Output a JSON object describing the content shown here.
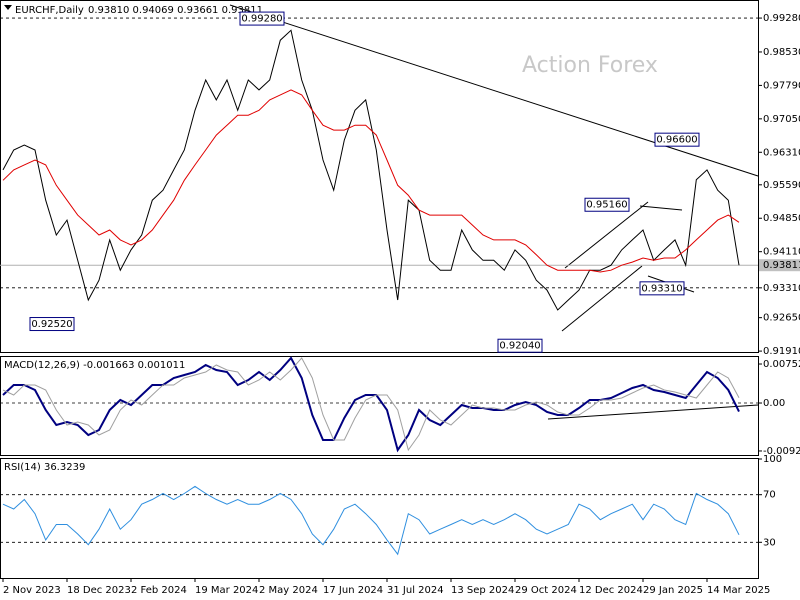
{
  "chart_data": [
    {
      "type": "line",
      "title": "EURCHF,Daily",
      "subtitle": "0.93810 0.94069 0.93661 0.93811",
      "watermark": "Action Forex",
      "categories": [
        "2 Nov 2023",
        null,
        null,
        null,
        null,
        null,
        "18 Dec 2023",
        null,
        null,
        null,
        null,
        null,
        "2 Feb 2024",
        null,
        null,
        null,
        null,
        null,
        "19 Mar 2024",
        null,
        null,
        null,
        null,
        null,
        "2 May 2024",
        null,
        null,
        null,
        null,
        null,
        "17 Jun 2024",
        null,
        null,
        null,
        null,
        null,
        "31 Jul 2024",
        null,
        null,
        null,
        null,
        null,
        "13 Sep 2024",
        null,
        null,
        null,
        null,
        null,
        "29 Oct 2024",
        null,
        null,
        null,
        null,
        null,
        "12 Dec 2024",
        null,
        null,
        null,
        null,
        null,
        "29 Jan 2025",
        null,
        null,
        null,
        null,
        null,
        "14 Mar 2025",
        null,
        null,
        null
      ],
      "series": [
        {
          "color": "#000000",
          "values": [
            0.9592,
            0.9636,
            0.9647,
            0.9636,
            0.9525,
            0.9448,
            0.9481,
            0.9392,
            0.9304,
            0.9348,
            0.9437,
            0.937,
            0.9415,
            0.9448,
            0.9525,
            0.9547,
            0.9592,
            0.9636,
            0.9724,
            0.9791,
            0.9747,
            0.9791,
            0.9724,
            0.9791,
            0.9769,
            0.9791,
            0.9879,
            0.9901,
            0.9791,
            0.9724,
            0.9614,
            0.9547,
            0.9658,
            0.9724,
            0.9747,
            0.9636,
            0.9459,
            0.9304,
            0.9525,
            0.9503,
            0.9392,
            0.937,
            0.937,
            0.9459,
            0.9415,
            0.9392,
            0.9392,
            0.937,
            0.9415,
            0.9392,
            0.9348,
            0.9326,
            0.9282,
            0.9304,
            0.9326,
            0.937,
            0.937,
            0.9381,
            0.9415,
            0.9437,
            0.9459,
            0.9392,
            0.9415,
            0.9437,
            0.9381,
            0.957,
            0.9592,
            0.9547,
            0.9525,
            0.93811
          ]
        },
        {
          "color": "#e00000",
          "values": [
            0.9569,
            0.9592,
            0.9603,
            0.9614,
            0.9603,
            0.9558,
            0.9525,
            0.9492,
            0.947,
            0.9448,
            0.9459,
            0.9437,
            0.9426,
            0.9437,
            0.9459,
            0.9492,
            0.9525,
            0.9569,
            0.9603,
            0.9636,
            0.9669,
            0.9691,
            0.9713,
            0.9713,
            0.9724,
            0.9747,
            0.9758,
            0.9769,
            0.9758,
            0.9724,
            0.9691,
            0.968,
            0.968,
            0.9691,
            0.9691,
            0.9669,
            0.9614,
            0.9558,
            0.9536,
            0.9503,
            0.9492,
            0.9492,
            0.9492,
            0.9492,
            0.947,
            0.9448,
            0.9437,
            0.9437,
            0.9437,
            0.9426,
            0.9404,
            0.9381,
            0.937,
            0.937,
            0.937,
            0.937,
            0.9366,
            0.937,
            0.9381,
            0.9388,
            0.9397,
            0.9392,
            0.9397,
            0.9397,
            0.9415,
            0.9437,
            0.9459,
            0.9481,
            0.9492,
            0.9476
          ]
        }
      ],
      "ylim": [
        0.9189,
        0.9968
      ],
      "yticks": [
        {
          "value": 0.9928,
          "label": "0.99280"
        },
        {
          "value": 0.9853,
          "label": "0.98530"
        },
        {
          "value": 0.9779,
          "label": "0.97790"
        },
        {
          "value": 0.9705,
          "label": "0.97050"
        },
        {
          "value": 0.9631,
          "label": "0.96310"
        },
        {
          "value": 0.9559,
          "label": "0.95590"
        },
        {
          "value": 0.9485,
          "label": "0.94850"
        },
        {
          "value": 0.9411,
          "label": "0.94110"
        },
        {
          "value": 0.9331,
          "label": "0.93310"
        },
        {
          "value": 0.9265,
          "label": "0.92650"
        },
        {
          "value": 0.9191,
          "label": "0.91910"
        }
      ],
      "current": {
        "value": 0.93811,
        "label": "0.93811"
      },
      "dashed_levels": [
        0.9928,
        0.9331
      ],
      "annotations": [
        {
          "value": 0.9928,
          "label": "0.99280"
        },
        {
          "value": 0.9252,
          "label": "0.92520"
        },
        {
          "value": 0.9204,
          "label": "0.92040"
        },
        {
          "value": 0.9516,
          "label": "0.95160"
        },
        {
          "value": 0.9331,
          "label": "0.93310"
        },
        {
          "value": 0.966,
          "label": "0.96600"
        }
      ]
    },
    {
      "type": "line",
      "title": "MACD(12,26,9) -0.001663 0.001011",
      "series": [
        {
          "color": "#000080",
          "values": [
            0.00154,
            0.00347,
            0.00347,
            0.00251,
            -0.00135,
            -0.00425,
            -0.00367,
            -0.00425,
            -0.00618,
            -0.00521,
            -0.00135,
            0.00058,
            -0.00039,
            0.00154,
            0.00347,
            0.00347,
            0.00482,
            0.0054,
            0.00598,
            0.00733,
            0.00637,
            0.00598,
            0.00347,
            0.00444,
            0.00598,
            0.00444,
            0.00637,
            0.00868,
            0.00482,
            -0.00232,
            -0.00714,
            -0.00714,
            -0.00289,
            0.00058,
            0.00154,
            0.00154,
            -0.00135,
            -0.00907,
            -0.00618,
            -0.00135,
            -0.00328,
            -0.00425,
            -0.00232,
            -0.00039,
            -0.00096,
            -0.00096,
            -0.00135,
            -0.00135,
            -0.00039,
            0.00019,
            -0.00039,
            -0.00174,
            -0.00232,
            -0.00232,
            -0.00096,
            0.00058,
            0.00058,
            0.00096,
            0.00193,
            0.00289,
            0.00347,
            0.00251,
            0.00212,
            0.00154,
            0.00096,
            0.00347,
            0.00598,
            0.00482,
            0.00251,
            -0.001663
          ]
        },
        {
          "color": "#a0a0a0",
          "values": [
            0.0025,
            0.00154,
            0.00347,
            0.00347,
            0.00251,
            -0.00135,
            -0.00425,
            -0.00367,
            -0.00425,
            -0.00618,
            -0.00521,
            -0.00135,
            0.00058,
            -0.00039,
            0.00154,
            0.00347,
            0.00347,
            0.00482,
            0.0054,
            0.00598,
            0.00733,
            0.00637,
            0.00598,
            0.00347,
            0.00444,
            0.00598,
            0.00444,
            0.00637,
            0.00868,
            0.00482,
            -0.00232,
            -0.00714,
            -0.00714,
            -0.00289,
            0.00058,
            0.00154,
            0.00154,
            -0.00135,
            -0.00907,
            -0.00618,
            -0.00135,
            -0.00328,
            -0.00425,
            -0.00232,
            -0.00039,
            -0.00096,
            -0.00096,
            -0.00135,
            -0.00135,
            -0.00039,
            0.00019,
            -0.00039,
            -0.00174,
            -0.00232,
            -0.00232,
            -0.00096,
            0.00058,
            0.00058,
            0.00096,
            0.00193,
            0.00289,
            0.00347,
            0.00251,
            0.00212,
            0.00154,
            0.00096,
            0.00347,
            0.00598,
            0.00482,
            0.001011
          ]
        }
      ],
      "ylim": [
        -0.01003,
        0.00888
      ],
      "yticks": [
        0.007526,
        {
          "value": 0,
          "label": "0.00"
        },
        -0.009252
      ],
      "dashed_levels": [
        0
      ]
    },
    {
      "type": "line",
      "title": "RSI(14) 36.3239",
      "series": [
        {
          "color": "#2f8fdf",
          "values": [
            62,
            58,
            66,
            54,
            32,
            45,
            45,
            37,
            28,
            41,
            58,
            41,
            49,
            62,
            66,
            71,
            66,
            71,
            77,
            71,
            66,
            62,
            66,
            62,
            62,
            66,
            71,
            66,
            54,
            37,
            28,
            41,
            58,
            62,
            54,
            45,
            32,
            20,
            54,
            49,
            37,
            41,
            45,
            49,
            45,
            49,
            45,
            49,
            54,
            49,
            41,
            37,
            41,
            45,
            62,
            58,
            49,
            54,
            58,
            62,
            49,
            62,
            58,
            49,
            45,
            71,
            66,
            62,
            54,
            36.3239
          ]
        }
      ],
      "ylim": [
        0,
        100
      ],
      "yticks": [
        100,
        70,
        30
      ],
      "dashed_levels": [
        70,
        30
      ]
    }
  ]
}
